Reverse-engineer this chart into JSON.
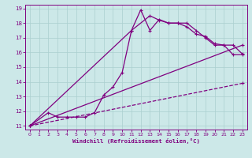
{
  "xlabel": "Windchill (Refroidissement éolien,°C)",
  "bg_color": "#cce8e8",
  "line_color": "#800080",
  "xlim": [
    -0.5,
    23.5
  ],
  "ylim": [
    10.75,
    19.25
  ],
  "xticks": [
    0,
    1,
    2,
    3,
    4,
    5,
    6,
    7,
    8,
    9,
    10,
    11,
    12,
    13,
    14,
    15,
    16,
    17,
    18,
    19,
    20,
    21,
    22,
    23
  ],
  "yticks": [
    11,
    12,
    13,
    14,
    15,
    16,
    17,
    18,
    19
  ],
  "grid_color": "#aacfcf",
  "line1_x": [
    0,
    2,
    3,
    4,
    5,
    6,
    7,
    8,
    9,
    10,
    11,
    12,
    13,
    14,
    15,
    16,
    17,
    18,
    19,
    20,
    21,
    22,
    23
  ],
  "line1_y": [
    11,
    11.9,
    11.6,
    11.6,
    11.6,
    11.6,
    11.9,
    13.1,
    13.65,
    14.65,
    17.5,
    18.9,
    17.5,
    18.25,
    18.0,
    18.0,
    17.75,
    17.25,
    17.1,
    16.6,
    16.5,
    15.85,
    15.85
  ],
  "line2_x": [
    0,
    11,
    13,
    14,
    15,
    16,
    17,
    18,
    19,
    20,
    21,
    22,
    23
  ],
  "line2_y": [
    11,
    17.5,
    18.5,
    18.2,
    18.0,
    18.0,
    18.0,
    17.5,
    17.0,
    16.5,
    16.5,
    16.5,
    15.9
  ],
  "line3_x": [
    0,
    23
  ],
  "line3_y": [
    11,
    16.5
  ],
  "line4_x": [
    0,
    23
  ],
  "line4_y": [
    11,
    13.9
  ],
  "marker_size": 3,
  "lw": 0.9
}
